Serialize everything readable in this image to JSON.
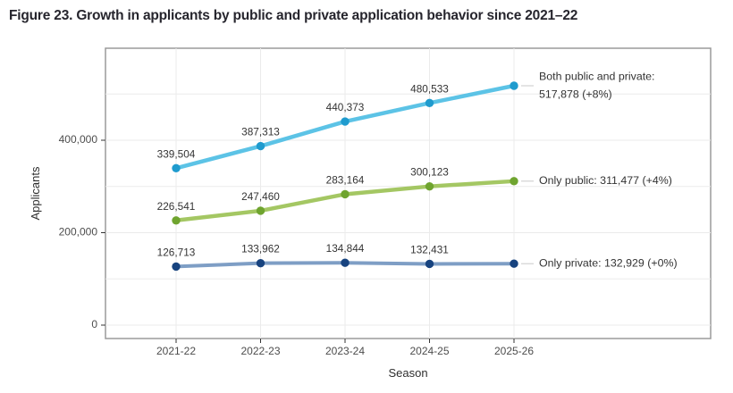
{
  "figure": {
    "title": "Figure 23. Growth in applicants by public and private application behavior since 2021–22"
  },
  "chart_data": {
    "type": "line",
    "title": "Figure 23. Growth in applicants by public and private application behavior since 2021–22",
    "xlabel": "Season",
    "ylabel": "Applicants",
    "categories": [
      "2021-22",
      "2022-23",
      "2023-24",
      "2024-25",
      "2025-26"
    ],
    "ylim": [
      0,
      599000
    ],
    "grid": "on",
    "legend_position": "right-annotations",
    "y_axis": {
      "ticks": [
        {
          "value": 0,
          "label": "0"
        },
        {
          "value": 200000,
          "label": "200,000"
        },
        {
          "value": 400000,
          "label": "400,000"
        }
      ],
      "gridlines": [
        0,
        100000,
        200000,
        300000,
        400000,
        500000
      ]
    },
    "series": [
      {
        "name": "Both public and private",
        "line_color": "#5cc3e6",
        "marker_color": "#1f9bce",
        "line_width": 4.5,
        "values": [
          339504,
          387313,
          440373,
          480533,
          517878
        ],
        "point_labels": [
          "339,504",
          "387,313",
          "440,373",
          "480,533",
          ""
        ],
        "annotation_lines": [
          "Both public and private:",
          "517,878 (+8%)"
        ]
      },
      {
        "name": "Only public",
        "line_color": "#a4c763",
        "marker_color": "#6fa42f",
        "line_width": 4.5,
        "values": [
          226541,
          247460,
          283164,
          300123,
          311477
        ],
        "point_labels": [
          "226,541",
          "247,460",
          "283,164",
          "300,123",
          ""
        ],
        "annotation_lines": [
          "Only public: 311,477 (+4%)"
        ]
      },
      {
        "name": "Only private",
        "line_color": "#7e9ec5",
        "marker_color": "#17437f",
        "line_width": 4,
        "values": [
          126713,
          133962,
          134844,
          132431,
          132929
        ],
        "point_labels": [
          "126,713",
          "133,962",
          "134,844",
          "132,431",
          ""
        ],
        "annotation_lines": [
          "Only private: 132,929 (+0%)"
        ]
      }
    ],
    "colors": {
      "gridline": "#ebebeb",
      "panel_border": "#9a9a9a",
      "panel_fill": "#ffffff",
      "tick": "#333333",
      "leader_line": "#c9c9c9"
    }
  }
}
